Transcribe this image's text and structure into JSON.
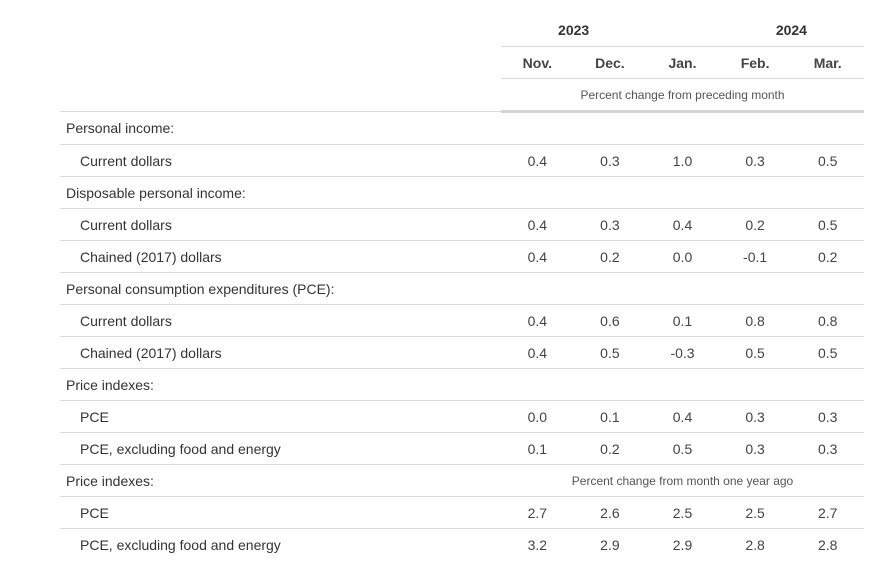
{
  "header": {
    "years": [
      {
        "label": "2023"
      },
      {
        "label": "2024"
      }
    ],
    "months": [
      "Nov.",
      "Dec.",
      "Jan.",
      "Feb.",
      "Mar."
    ],
    "unit_note": "Percent change from preceding month"
  },
  "sections": {
    "personal_income": {
      "label": "Personal income:",
      "current": {
        "label": "Current dollars",
        "values": [
          "0.4",
          "0.3",
          "1.0",
          "0.3",
          "0.5"
        ]
      }
    },
    "disposable_income": {
      "label": "Disposable personal income:",
      "current": {
        "label": "Current dollars",
        "values": [
          "0.4",
          "0.3",
          "0.4",
          "0.2",
          "0.5"
        ]
      },
      "chained": {
        "label": "Chained (2017) dollars",
        "values": [
          "0.4",
          "0.2",
          "0.0",
          "-0.1",
          "0.2"
        ]
      }
    },
    "pce": {
      "label": "Personal consumption expenditures (PCE):",
      "current": {
        "label": "Current dollars",
        "values": [
          "0.4",
          "0.6",
          "0.1",
          "0.8",
          "0.8"
        ]
      },
      "chained": {
        "label": "Chained (2017) dollars",
        "values": [
          "0.4",
          "0.5",
          "-0.3",
          "0.5",
          "0.5"
        ]
      }
    },
    "price_monthly": {
      "label": "Price indexes:",
      "pce": {
        "label": "PCE",
        "values": [
          "0.0",
          "0.1",
          "0.4",
          "0.3",
          "0.3"
        ]
      },
      "core": {
        "label": "PCE, excluding food and energy",
        "values": [
          "0.1",
          "0.2",
          "0.5",
          "0.3",
          "0.3"
        ]
      }
    },
    "price_yearly": {
      "label": "Price indexes:",
      "note": "Percent change from month one year ago",
      "pce": {
        "label": "PCE",
        "values": [
          "2.7",
          "2.6",
          "2.5",
          "2.5",
          "2.7"
        ]
      },
      "core": {
        "label": "PCE, excluding food and energy",
        "values": [
          "3.2",
          "2.9",
          "2.9",
          "2.8",
          "2.8"
        ]
      }
    }
  }
}
